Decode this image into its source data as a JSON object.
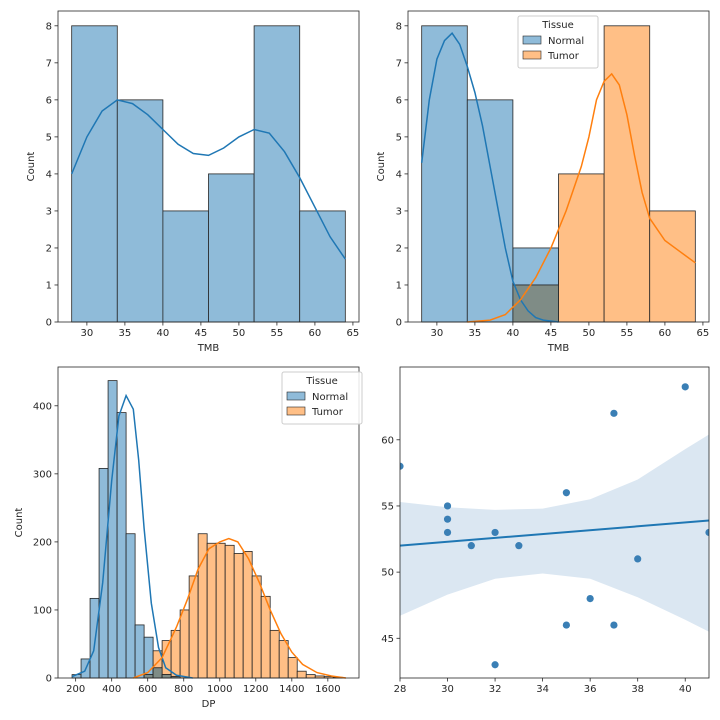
{
  "colors": {
    "normal": "#1f77b4",
    "normal_fill": "#8fbbd9",
    "normal_alpha_fill": "rgba(31,119,180,0.5)",
    "tumor": "#ff7f0e",
    "tumor_fill": "#ffbf86",
    "overlap_fill": "#7f8c86",
    "ci_band": "#dbe7f2"
  },
  "chart_data": [
    {
      "type": "bar",
      "subtype": "histogram_with_kde",
      "xlabel": "TMB",
      "ylabel": "Count",
      "xlim": [
        26.2,
        65.8
      ],
      "ylim": [
        0,
        8.4
      ],
      "xticks": [
        30,
        35,
        40,
        45,
        50,
        55,
        60,
        65
      ],
      "yticks": [
        0,
        1,
        2,
        3,
        4,
        5,
        6,
        7,
        8
      ],
      "bin_edges": [
        28,
        34,
        40,
        46,
        52,
        58,
        64
      ],
      "series": [
        {
          "values": [
            8,
            6,
            3,
            4,
            8,
            3
          ],
          "kde": [
            [
              28,
              4.0
            ],
            [
              30,
              5.0
            ],
            [
              32,
              5.7
            ],
            [
              34,
              6.0
            ],
            [
              36,
              5.9
            ],
            [
              38,
              5.6
            ],
            [
              40,
              5.2
            ],
            [
              42,
              4.8
            ],
            [
              44,
              4.55
            ],
            [
              46,
              4.5
            ],
            [
              48,
              4.7
            ],
            [
              50,
              5.0
            ],
            [
              52,
              5.2
            ],
            [
              54,
              5.1
            ],
            [
              56,
              4.6
            ],
            [
              58,
              3.9
            ],
            [
              60,
              3.1
            ],
            [
              62,
              2.3
            ],
            [
              64,
              1.7
            ]
          ]
        }
      ]
    },
    {
      "type": "bar",
      "subtype": "histogram_with_kde",
      "xlabel": "TMB",
      "ylabel": "Count",
      "xlim": [
        26.2,
        65.8
      ],
      "ylim": [
        0,
        8.4
      ],
      "xticks": [
        30,
        35,
        40,
        45,
        50,
        55,
        60,
        65
      ],
      "yticks": [
        0,
        1,
        2,
        3,
        4,
        5,
        6,
        7,
        8
      ],
      "bin_edges": [
        28,
        34,
        40,
        46,
        52,
        58,
        64
      ],
      "legend_title": "Tissue",
      "legend_position": "top-center",
      "series": [
        {
          "name": "Normal",
          "values": [
            8,
            6,
            2,
            0,
            0,
            0
          ],
          "kde": [
            [
              28,
              4.3
            ],
            [
              29,
              6.0
            ],
            [
              30,
              7.1
            ],
            [
              31,
              7.6
            ],
            [
              32,
              7.8
            ],
            [
              33,
              7.5
            ],
            [
              34,
              6.9
            ],
            [
              35,
              6.2
            ],
            [
              36,
              5.3
            ],
            [
              37,
              4.2
            ],
            [
              38,
              3.1
            ],
            [
              39,
              2.0
            ],
            [
              40,
              1.1
            ],
            [
              41,
              0.6
            ],
            [
              42,
              0.3
            ],
            [
              43,
              0.12
            ],
            [
              44,
              0.05
            ],
            [
              46,
              0.0
            ]
          ]
        },
        {
          "name": "Tumor",
          "values": [
            0,
            0,
            1,
            4,
            8,
            3
          ],
          "kde": [
            [
              34,
              0.0
            ],
            [
              37,
              0.05
            ],
            [
              39,
              0.2
            ],
            [
              41,
              0.6
            ],
            [
              43,
              1.2
            ],
            [
              45,
              2.0
            ],
            [
              47,
              3.0
            ],
            [
              49,
              4.2
            ],
            [
              50,
              5.0
            ],
            [
              51,
              6.0
            ],
            [
              52,
              6.5
            ],
            [
              53,
              6.7
            ],
            [
              54,
              6.4
            ],
            [
              55,
              5.6
            ],
            [
              56,
              4.5
            ],
            [
              57,
              3.5
            ],
            [
              58,
              2.8
            ],
            [
              60,
              2.2
            ],
            [
              62,
              1.9
            ],
            [
              64,
              1.6
            ]
          ]
        }
      ]
    },
    {
      "type": "bar",
      "subtype": "histogram_with_kde",
      "xlabel": "DP",
      "ylabel": "Count",
      "xlim": [
        102,
        1773
      ],
      "ylim": [
        0,
        457
      ],
      "xticks": [
        200,
        400,
        600,
        800,
        1000,
        1200,
        1400,
        1600
      ],
      "yticks": [
        0,
        100,
        200,
        300,
        400
      ],
      "legend_title": "Tissue",
      "legend_position": "top-right",
      "series": [
        {
          "name": "Normal",
          "bin_edges": [
            180,
            230,
            280,
            330,
            380,
            430,
            480,
            530,
            580,
            630,
            680,
            730,
            780,
            830,
            880
          ],
          "values": [
            5,
            28,
            117,
            308,
            437,
            390,
            212,
            78,
            60,
            15,
            5,
            2,
            0,
            0
          ],
          "kde": [
            [
              180,
              2
            ],
            [
              250,
              10
            ],
            [
              300,
              40
            ],
            [
              350,
              140
            ],
            [
              400,
              290
            ],
            [
              440,
              385
            ],
            [
              480,
              415
            ],
            [
              520,
              395
            ],
            [
              550,
              320
            ],
            [
              580,
              220
            ],
            [
              620,
              110
            ],
            [
              660,
              45
            ],
            [
              700,
              15
            ],
            [
              760,
              4
            ],
            [
              850,
              0
            ]
          ]
        },
        {
          "name": "Tumor",
          "bin_edges": [
            580,
            630,
            680,
            730,
            780,
            830,
            880,
            930,
            980,
            1030,
            1080,
            1130,
            1180,
            1230,
            1280,
            1330,
            1380,
            1430,
            1480,
            1530,
            1580,
            1630,
            1680
          ],
          "values": [
            5,
            40,
            55,
            70,
            100,
            150,
            212,
            198,
            198,
            195,
            183,
            186,
            150,
            120,
            70,
            55,
            30,
            10,
            5,
            3,
            2,
            1
          ],
          "kde": [
            [
              520,
              0
            ],
            [
              600,
              8
            ],
            [
              680,
              30
            ],
            [
              760,
              75
            ],
            [
              820,
              115
            ],
            [
              880,
              160
            ],
            [
              940,
              190
            ],
            [
              1000,
              200
            ],
            [
              1050,
              205
            ],
            [
              1100,
              200
            ],
            [
              1160,
              175
            ],
            [
              1220,
              140
            ],
            [
              1280,
              100
            ],
            [
              1340,
              65
            ],
            [
              1400,
              38
            ],
            [
              1460,
              20
            ],
            [
              1540,
              8
            ],
            [
              1620,
              3
            ],
            [
              1700,
              0
            ]
          ]
        }
      ]
    },
    {
      "type": "scatter",
      "subtype": "regression_with_ci",
      "xlabel": "",
      "ylabel": "",
      "xlim": [
        28,
        41
      ],
      "ylim": [
        42,
        65.5
      ],
      "xticks": [
        28,
        30,
        32,
        34,
        36,
        38,
        40
      ],
      "yticks": [
        45,
        50,
        55,
        60
      ],
      "points": [
        [
          28,
          58
        ],
        [
          30,
          55
        ],
        [
          30,
          54
        ],
        [
          30,
          53
        ],
        [
          31,
          52
        ],
        [
          32,
          53
        ],
        [
          32,
          43
        ],
        [
          33,
          52
        ],
        [
          35,
          56
        ],
        [
          35,
          46
        ],
        [
          36,
          48
        ],
        [
          37,
          62
        ],
        [
          37,
          46
        ],
        [
          38,
          51
        ],
        [
          40,
          64
        ],
        [
          41,
          53
        ]
      ],
      "regression_line": [
        [
          28,
          52.0
        ],
        [
          41,
          53.9
        ]
      ],
      "ci_upper": [
        [
          28,
          55.3
        ],
        [
          30,
          54.9
        ],
        [
          32,
          54.7
        ],
        [
          34,
          54.8
        ],
        [
          36,
          55.5
        ],
        [
          38,
          57.0
        ],
        [
          40,
          59.3
        ],
        [
          41,
          60.4
        ]
      ],
      "ci_lower": [
        [
          28,
          46.7
        ],
        [
          30,
          48.3
        ],
        [
          32,
          49.5
        ],
        [
          34,
          49.9
        ],
        [
          36,
          49.5
        ],
        [
          38,
          48.1
        ],
        [
          40,
          46.4
        ],
        [
          41,
          45.5
        ]
      ]
    }
  ]
}
